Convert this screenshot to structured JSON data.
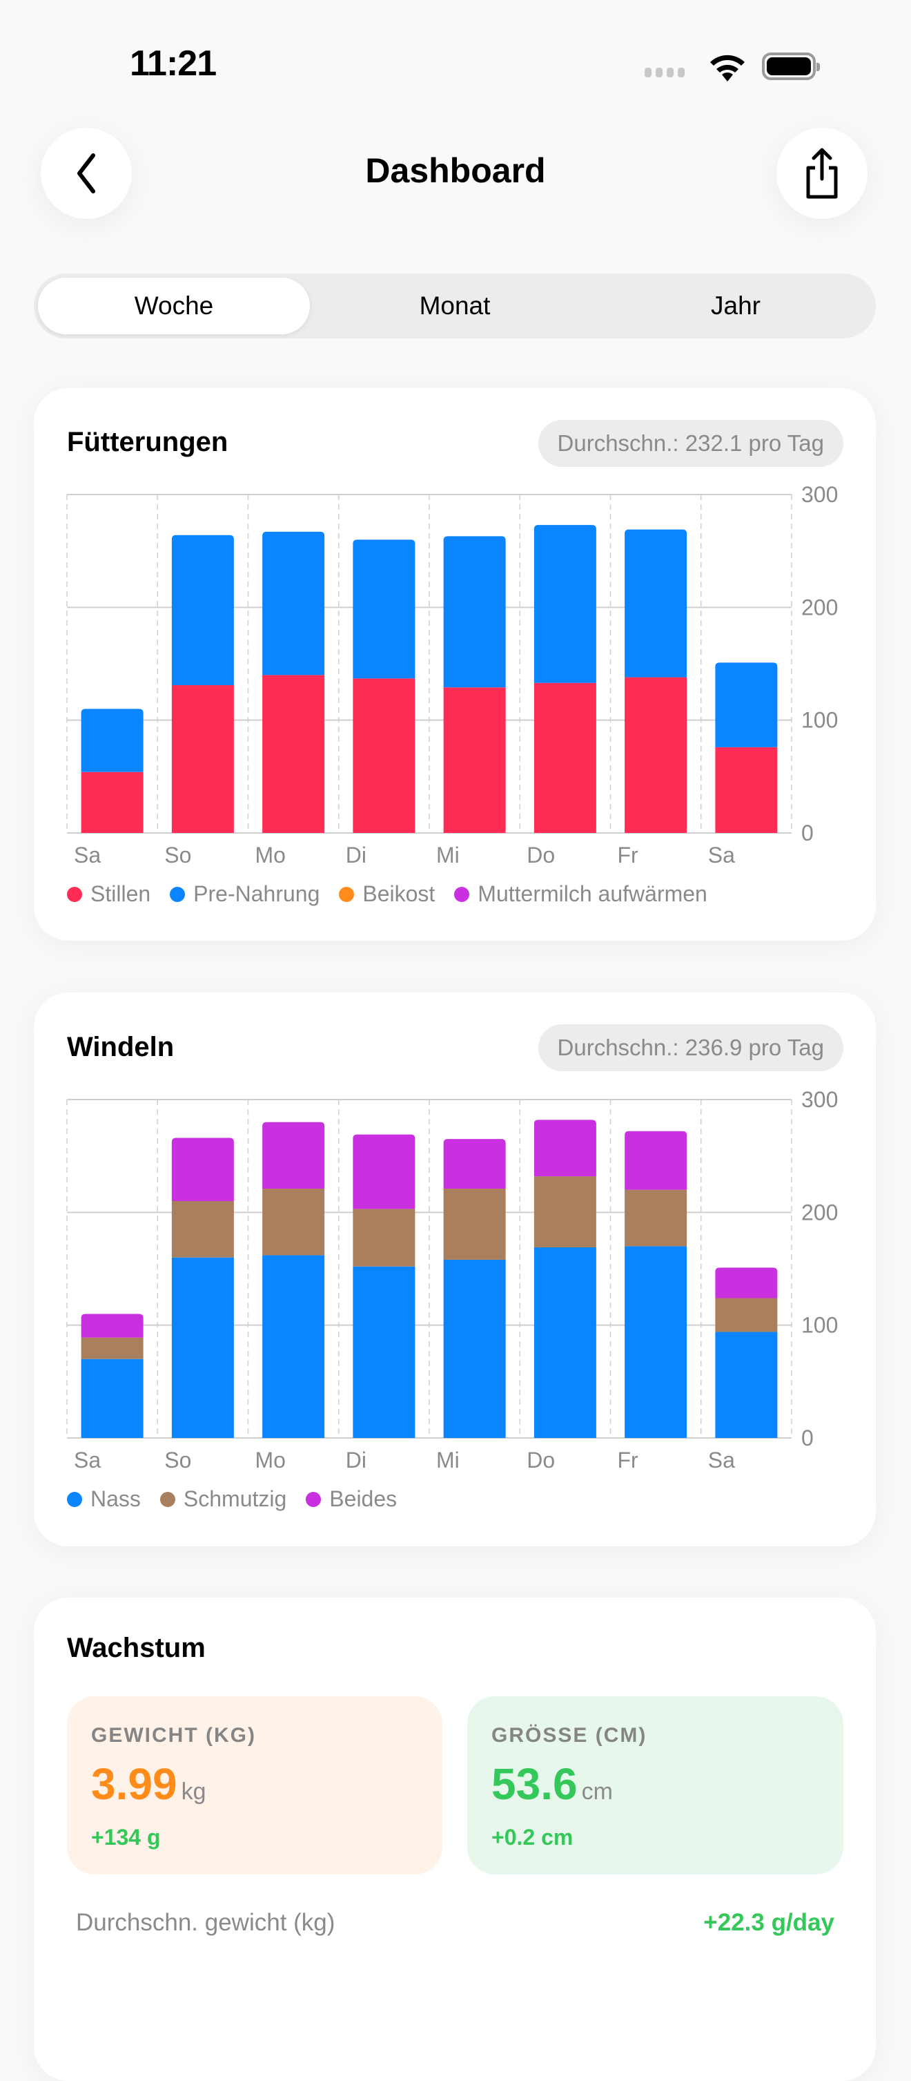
{
  "status_bar": {
    "time": "11:21",
    "signal_icon": "cellular-dots-icon",
    "wifi_icon": "wifi-icon",
    "battery_icon": "battery-full-icon"
  },
  "header": {
    "title": "Dashboard",
    "back_icon": "chevron-left-icon",
    "share_icon": "share-icon"
  },
  "segments": [
    {
      "label": "Woche",
      "selected": true
    },
    {
      "label": "Monat",
      "selected": false
    },
    {
      "label": "Jahr",
      "selected": false
    }
  ],
  "feedings": {
    "title": "Fütterungen",
    "badge": "Durchschn.: 232.1 pro Tag",
    "legend": [
      {
        "label": "Stillen",
        "color": "#ff2d55"
      },
      {
        "label": "Pre-Nahrung",
        "color": "#0a84ff"
      },
      {
        "label": "Beikost",
        "color": "#ff8c1a"
      },
      {
        "label": "Muttermilch aufwärmen",
        "color": "#c930e0"
      }
    ]
  },
  "diapers": {
    "title": "Windeln",
    "badge": "Durchschn.: 236.9 pro Tag",
    "legend": [
      {
        "label": "Nass",
        "color": "#0a84ff"
      },
      {
        "label": "Schmutzig",
        "color": "#a97f5e"
      },
      {
        "label": "Beides",
        "color": "#c930e0"
      }
    ]
  },
  "chart_data": [
    {
      "type": "bar",
      "stacked": true,
      "title": "Fütterungen",
      "categories": [
        "Sa",
        "So",
        "Mo",
        "Di",
        "Mi",
        "Do",
        "Fr",
        "Sa"
      ],
      "series": [
        {
          "name": "Stillen",
          "color": "#ff2d55",
          "values": [
            54,
            131,
            140,
            137,
            129,
            133,
            138,
            76
          ]
        },
        {
          "name": "Pre-Nahrung",
          "color": "#0a84ff",
          "values": [
            56,
            133,
            127,
            123,
            134,
            140,
            131,
            75
          ]
        },
        {
          "name": "Beikost",
          "color": "#ff8c1a",
          "values": [
            0,
            0,
            0,
            0,
            0,
            0,
            0,
            0
          ]
        },
        {
          "name": "Muttermilch aufwärmen",
          "color": "#c930e0",
          "values": [
            0,
            0,
            0,
            0,
            0,
            0,
            0,
            0
          ]
        }
      ],
      "ylim": [
        0,
        300
      ],
      "yticks": [
        "0",
        "100",
        "200",
        "300"
      ],
      "y_axis_side": "right",
      "grid": true,
      "legend": "bottom"
    },
    {
      "type": "bar",
      "stacked": true,
      "title": "Windeln",
      "categories": [
        "Sa",
        "So",
        "Mo",
        "Di",
        "Mi",
        "Do",
        "Fr",
        "Sa"
      ],
      "series": [
        {
          "name": "Nass",
          "color": "#0a84ff",
          "values": [
            70,
            160,
            162,
            152,
            158,
            169,
            170,
            94
          ]
        },
        {
          "name": "Schmutzig",
          "color": "#a97f5e",
          "values": [
            19,
            50,
            59,
            51,
            63,
            63,
            50,
            30
          ]
        },
        {
          "name": "Beides",
          "color": "#c930e0",
          "values": [
            21,
            56,
            59,
            66,
            44,
            50,
            52,
            27
          ]
        }
      ],
      "ylim": [
        0,
        300
      ],
      "yticks": [
        "0",
        "100",
        "200",
        "300"
      ],
      "y_axis_side": "right",
      "grid": true,
      "legend": "bottom"
    }
  ],
  "growth": {
    "title": "Wachstum",
    "weight": {
      "label": "GEWICHT (KG)",
      "value": "3.99",
      "unit": "kg",
      "delta": "+134 g",
      "color": "#ff8c1a",
      "bg": "#fff2e8"
    },
    "height": {
      "label": "GRÖSSE (CM)",
      "value": "53.6",
      "unit": "cm",
      "delta": "+0.2 cm",
      "color": "#34c759",
      "bg": "#e8f7ec"
    },
    "avg_label": "Durchschn. gewicht (kg)",
    "avg_value": "+22.3 g/day"
  }
}
